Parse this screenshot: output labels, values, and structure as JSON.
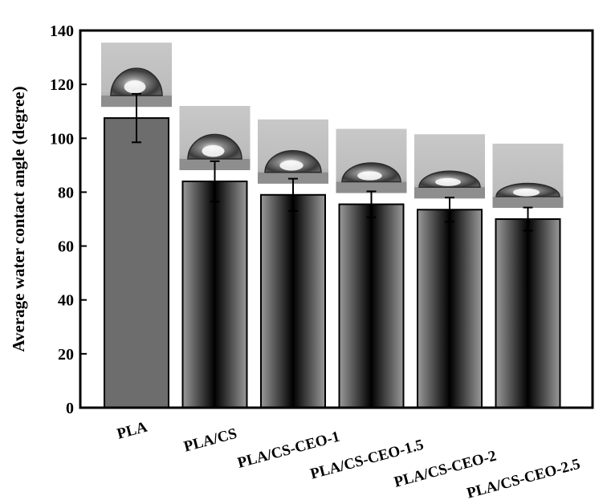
{
  "chart_data": {
    "type": "bar",
    "title": "",
    "xlabel": "",
    "ylabel": "Average water contact angle (degree)",
    "ylim": [
      0,
      140
    ],
    "yticks": [
      0,
      20,
      40,
      60,
      80,
      100,
      120,
      140
    ],
    "grid": false,
    "legend": "none",
    "categories": [
      "PLA",
      "PLA/CS",
      "PLA/CS-CEO-1",
      "PLA/CS-CEO-1.5",
      "PLA/CS-CEO-2",
      "PLA/CS-CEO-2.5"
    ],
    "values": [
      107.5,
      84,
      79,
      75.5,
      73.5,
      70
    ],
    "errors": [
      9,
      7.5,
      6,
      4.8,
      4.5,
      4.3
    ],
    "bar_style": [
      "flat",
      "gradient",
      "gradient",
      "gradient",
      "gradient",
      "gradient"
    ],
    "droplet_images": "contact-angle droplet photo above each bar",
    "colors": {
      "flat_bar": "#6d6d6d",
      "gradient_edge": "#9a9a9a",
      "gradient_center": "#000000",
      "axis": "#000000"
    }
  }
}
